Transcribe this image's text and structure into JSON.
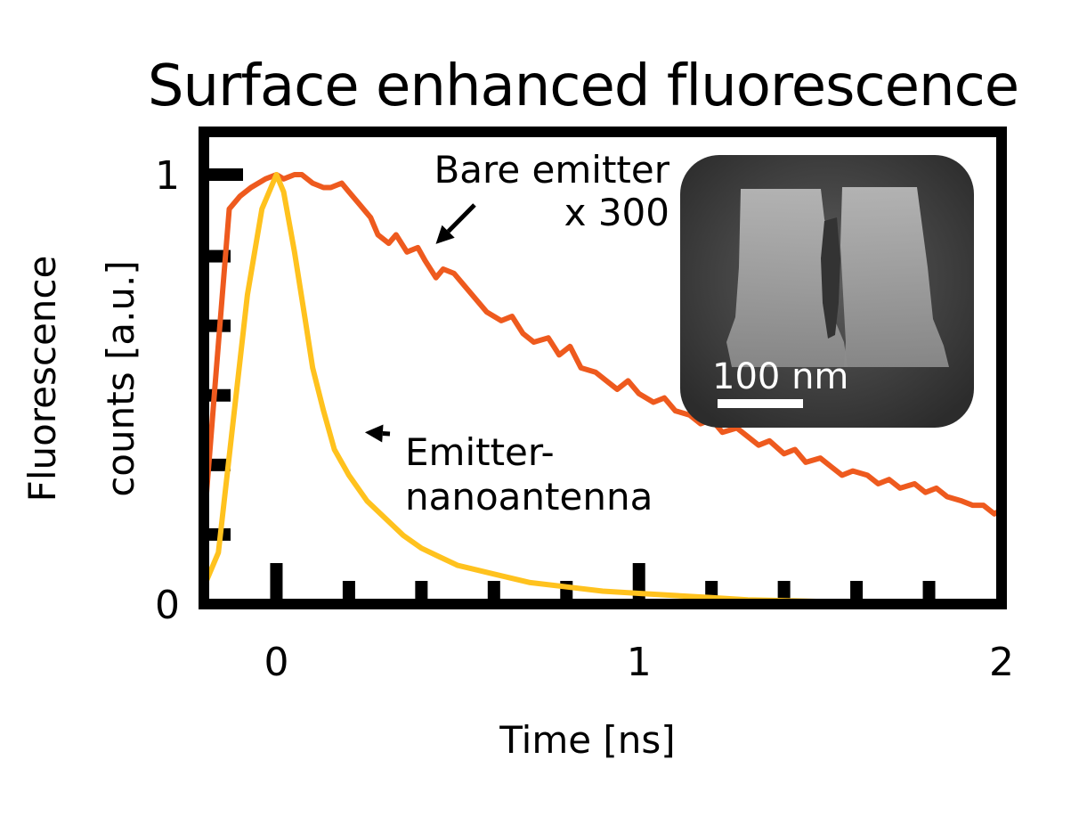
{
  "chart_data": {
    "type": "line",
    "title": "Surface enhanced fluorescence",
    "xlabel": "Time [ns]",
    "ylabel_lines": [
      "Fluorescence",
      "counts [a.u.]"
    ],
    "xlim": [
      -0.2,
      2.0
    ],
    "ylim": [
      0,
      1.0
    ],
    "x_ticks": [
      0,
      1,
      2
    ],
    "x_tick_labels": [
      "0",
      "1",
      "2"
    ],
    "y_ticks": [
      0,
      1
    ],
    "y_tick_labels": [
      "0",
      "1"
    ],
    "grid": false,
    "legend": "none",
    "series": [
      {
        "color": "#EE5A1E",
        "x": [
          -0.2,
          -0.17,
          -0.13,
          -0.1,
          -0.07,
          -0.03,
          0.0,
          0.02,
          0.05,
          0.07,
          0.1,
          0.13,
          0.15,
          0.18,
          0.2,
          0.23,
          0.26,
          0.28,
          0.31,
          0.33,
          0.36,
          0.39,
          0.41,
          0.44,
          0.46,
          0.49,
          0.52,
          0.55,
          0.58,
          0.62,
          0.65,
          0.68,
          0.71,
          0.75,
          0.78,
          0.81,
          0.84,
          0.88,
          0.91,
          0.94,
          0.97,
          1.0,
          1.04,
          1.07,
          1.1,
          1.14,
          1.17,
          1.2,
          1.23,
          1.27,
          1.3,
          1.33,
          1.36,
          1.4,
          1.43,
          1.46,
          1.5,
          1.53,
          1.56,
          1.59,
          1.63,
          1.66,
          1.69,
          1.72,
          1.76,
          1.79,
          1.82,
          1.85,
          1.89,
          1.92,
          1.95,
          1.98,
          2.0
        ],
        "y": [
          0.18,
          0.5,
          0.92,
          0.95,
          0.97,
          0.99,
          1.0,
          0.99,
          1.0,
          1.0,
          0.98,
          0.97,
          0.97,
          0.98,
          0.96,
          0.93,
          0.9,
          0.86,
          0.84,
          0.86,
          0.82,
          0.83,
          0.8,
          0.76,
          0.78,
          0.77,
          0.74,
          0.71,
          0.68,
          0.66,
          0.67,
          0.63,
          0.61,
          0.62,
          0.58,
          0.6,
          0.55,
          0.54,
          0.52,
          0.5,
          0.52,
          0.49,
          0.47,
          0.48,
          0.45,
          0.44,
          0.42,
          0.43,
          0.4,
          0.41,
          0.39,
          0.37,
          0.38,
          0.35,
          0.36,
          0.33,
          0.34,
          0.32,
          0.3,
          0.31,
          0.3,
          0.28,
          0.29,
          0.27,
          0.28,
          0.26,
          0.27,
          0.25,
          0.24,
          0.23,
          0.23,
          0.21,
          0.22
        ]
      },
      {
        "color": "#FFC21E",
        "x": [
          -0.2,
          -0.16,
          -0.12,
          -0.08,
          -0.04,
          0.0,
          0.02,
          0.05,
          0.08,
          0.1,
          0.13,
          0.16,
          0.2,
          0.25,
          0.3,
          0.35,
          0.4,
          0.45,
          0.5,
          0.55,
          0.6,
          0.7,
          0.8,
          0.9,
          1.0,
          1.1,
          1.2,
          1.3,
          1.4,
          1.5,
          1.6,
          1.7,
          1.8,
          1.9,
          2.0
        ],
        "y": [
          0.04,
          0.12,
          0.42,
          0.72,
          0.92,
          1.0,
          0.96,
          0.82,
          0.66,
          0.55,
          0.45,
          0.36,
          0.3,
          0.24,
          0.2,
          0.16,
          0.13,
          0.11,
          0.09,
          0.08,
          0.07,
          0.05,
          0.04,
          0.03,
          0.025,
          0.02,
          0.015,
          0.01,
          0.008,
          0.006,
          0.005,
          0.004,
          0.003,
          0.002,
          0.002
        ]
      }
    ],
    "annotations": [
      {
        "lines": [
          "Bare emitter",
          "x 300"
        ],
        "target_series": 0,
        "target": [
          0.42,
          0.83
        ]
      },
      {
        "lines": [
          "Emitter-",
          "nanoantenna"
        ],
        "target_series": 1,
        "target": [
          0.2,
          0.4
        ]
      }
    ],
    "inset": {
      "scale_label": "100 nm"
    }
  }
}
